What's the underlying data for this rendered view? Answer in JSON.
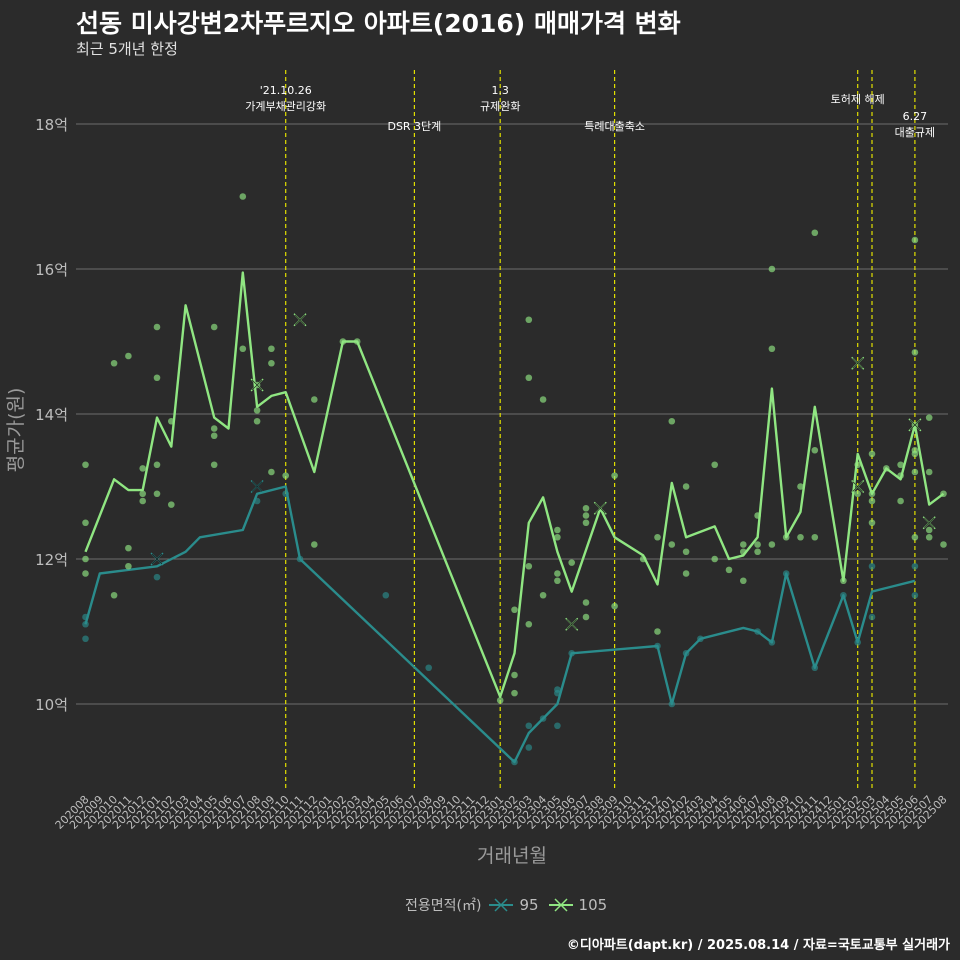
{
  "title": "선동 미사강변2차푸르지오 아파트(2016) 매매가격 변화",
  "subtitle": "최근 5개년 한정",
  "caption": "©디아파트(dapt.kr) / 2025.08.14 / 자료=국토교통부 실거래가",
  "colors": {
    "background": "#2b2b2b",
    "grid": "#6e6e6e",
    "series_95": "#2a8c8c",
    "series_105": "#90e682",
    "event_line": "#e2e000",
    "axis_text": "#bdbdbd"
  },
  "chart_data": {
    "type": "line",
    "xlabel": "거래년월",
    "ylabel": "평균가(원)",
    "ylim": [
      8.8,
      18.8
    ],
    "yticks": [
      {
        "value": 10,
        "label": "10억"
      },
      {
        "value": 12,
        "label": "12억"
      },
      {
        "value": 14,
        "label": "14억"
      },
      {
        "value": 16,
        "label": "16억"
      },
      {
        "value": 18,
        "label": "18억"
      }
    ],
    "months": [
      "202008",
      "202009",
      "202010",
      "202011",
      "202012",
      "202101",
      "202102",
      "202103",
      "202104",
      "202105",
      "202106",
      "202107",
      "202108",
      "202109",
      "202110",
      "202111",
      "202112",
      "202201",
      "202202",
      "202203",
      "202204",
      "202205",
      "202206",
      "202207",
      "202208",
      "202209",
      "202210",
      "202211",
      "202212",
      "202301",
      "202302",
      "202303",
      "202304",
      "202305",
      "202306",
      "202307",
      "202308",
      "202309",
      "202310",
      "202311",
      "202312",
      "202401",
      "202402",
      "202403",
      "202404",
      "202405",
      "202406",
      "202407",
      "202408",
      "202409",
      "202410",
      "202411",
      "202412",
      "202501",
      "202502",
      "202503",
      "202504",
      "202505",
      "202506",
      "202507",
      "202508"
    ],
    "legend_title": "전용면적(㎡)",
    "events": [
      {
        "month": "202110",
        "label_lines": [
          "'21.10.26",
          "가계부채관리강화"
        ],
        "row": 0
      },
      {
        "month": "202207",
        "label_lines": [
          "DSR 3단계"
        ],
        "row": 2
      },
      {
        "month": "202301",
        "label_lines": [
          "1.3",
          "규제완화"
        ],
        "row": 0
      },
      {
        "month": "202309",
        "label_lines": [
          "특례대출축소"
        ],
        "row": 2
      },
      {
        "month": "202502",
        "label_lines": [
          "토허제 해제"
        ],
        "row": 1
      },
      {
        "month": "202503",
        "label_lines": [],
        "row": 0
      },
      {
        "month": "202506",
        "label_lines": [
          "6.27",
          "대출규제"
        ],
        "row": 3
      }
    ],
    "series": [
      {
        "name": "95",
        "line": [
          [
            "202008",
            11.1
          ],
          [
            "202009",
            11.8
          ],
          [
            "202101",
            11.9
          ],
          [
            "202103",
            12.1
          ],
          [
            "202104",
            12.3
          ],
          [
            "202107",
            12.4
          ],
          [
            "202108",
            12.9
          ],
          [
            "202110",
            13.0
          ],
          [
            "202111",
            12.0
          ],
          [
            "202302",
            9.2
          ],
          [
            "202303",
            9.6
          ],
          [
            "202304",
            9.8
          ],
          [
            "202305",
            10.0
          ],
          [
            "202306",
            10.7
          ],
          [
            "202312",
            10.8
          ],
          [
            "202401",
            10.0
          ],
          [
            "202402",
            10.7
          ],
          [
            "202403",
            10.9
          ],
          [
            "202406",
            11.05
          ],
          [
            "202407",
            11.0
          ],
          [
            "202408",
            10.85
          ],
          [
            "202409",
            11.8
          ],
          [
            "202411",
            10.5
          ],
          [
            "202501",
            11.5
          ],
          [
            "202502",
            10.85
          ],
          [
            "202503",
            11.55
          ],
          [
            "202506",
            11.7
          ]
        ],
        "points": [
          [
            "202008",
            11.2
          ],
          [
            "202008",
            11.1
          ],
          [
            "202008",
            10.9
          ],
          [
            "202101",
            11.75
          ],
          [
            "202108",
            12.8
          ],
          [
            "202110",
            12.9
          ],
          [
            "202111",
            12.0
          ],
          [
            "202205",
            11.5
          ],
          [
            "202208",
            10.5
          ],
          [
            "202302",
            9.2
          ],
          [
            "202303",
            9.4
          ],
          [
            "202303",
            9.7
          ],
          [
            "202304",
            9.8
          ],
          [
            "202305",
            10.2
          ],
          [
            "202305",
            10.15
          ],
          [
            "202305",
            9.7
          ],
          [
            "202306",
            10.7
          ],
          [
            "202312",
            10.8
          ],
          [
            "202401",
            10.0
          ],
          [
            "202402",
            10.7
          ],
          [
            "202403",
            10.9
          ],
          [
            "202407",
            11.0
          ],
          [
            "202408",
            10.85
          ],
          [
            "202409",
            11.8
          ],
          [
            "202411",
            10.5
          ],
          [
            "202501",
            11.5
          ],
          [
            "202502",
            10.85
          ],
          [
            "202503",
            11.9
          ],
          [
            "202503",
            11.2
          ],
          [
            "202506",
            11.5
          ],
          [
            "202506",
            11.9
          ]
        ],
        "crosses": [
          [
            "202101",
            12.0
          ],
          [
            "202108",
            13.0
          ]
        ]
      },
      {
        "name": "105",
        "line": [
          [
            "202008",
            12.1
          ],
          [
            "202010",
            13.1
          ],
          [
            "202011",
            12.95
          ],
          [
            "202012",
            12.95
          ],
          [
            "202101",
            13.95
          ],
          [
            "202102",
            13.55
          ],
          [
            "202103",
            15.5
          ],
          [
            "202105",
            13.95
          ],
          [
            "202106",
            13.8
          ],
          [
            "202107",
            15.95
          ],
          [
            "202108",
            14.1
          ],
          [
            "202109",
            14.25
          ],
          [
            "202110",
            14.3
          ],
          [
            "202112",
            13.2
          ],
          [
            "202202",
            15.0
          ],
          [
            "202203",
            15.0
          ],
          [
            "202301",
            10.1
          ],
          [
            "202302",
            10.7
          ],
          [
            "202303",
            12.5
          ],
          [
            "202304",
            12.85
          ],
          [
            "202305",
            12.1
          ],
          [
            "202306",
            11.55
          ],
          [
            "202308",
            12.7
          ],
          [
            "202309",
            12.3
          ],
          [
            "202311",
            12.05
          ],
          [
            "202312",
            11.65
          ],
          [
            "202401",
            13.05
          ],
          [
            "202402",
            12.3
          ],
          [
            "202404",
            12.45
          ],
          [
            "202405",
            12.0
          ],
          [
            "202406",
            12.05
          ],
          [
            "202407",
            12.3
          ],
          [
            "202408",
            14.35
          ],
          [
            "202409",
            12.3
          ],
          [
            "202410",
            12.65
          ],
          [
            "202411",
            14.1
          ],
          [
            "202501",
            11.7
          ],
          [
            "202502",
            13.45
          ],
          [
            "202503",
            12.9
          ],
          [
            "202504",
            13.25
          ],
          [
            "202505",
            13.1
          ],
          [
            "202506",
            13.85
          ],
          [
            "202507",
            12.75
          ],
          [
            "202508",
            12.9
          ]
        ],
        "points": [
          [
            "202008",
            13.3
          ],
          [
            "202008",
            12.5
          ],
          [
            "202008",
            12.0
          ],
          [
            "202008",
            11.8
          ],
          [
            "202010",
            11.5
          ],
          [
            "202010",
            14.7
          ],
          [
            "202011",
            14.8
          ],
          [
            "202011",
            12.15
          ],
          [
            "202011",
            11.9
          ],
          [
            "202012",
            13.25
          ],
          [
            "202012",
            12.9
          ],
          [
            "202012",
            12.8
          ],
          [
            "202101",
            15.2
          ],
          [
            "202101",
            14.5
          ],
          [
            "202101",
            13.3
          ],
          [
            "202101",
            12.9
          ],
          [
            "202102",
            13.9
          ],
          [
            "202102",
            12.75
          ],
          [
            "202105",
            15.2
          ],
          [
            "202105",
            13.8
          ],
          [
            "202105",
            13.7
          ],
          [
            "202105",
            13.3
          ],
          [
            "202107",
            17.0
          ],
          [
            "202107",
            14.9
          ],
          [
            "202108",
            14.4
          ],
          [
            "202108",
            14.05
          ],
          [
            "202108",
            13.9
          ],
          [
            "202109",
            14.9
          ],
          [
            "202109",
            14.7
          ],
          [
            "202109",
            13.2
          ],
          [
            "202110",
            13.15
          ],
          [
            "202112",
            14.2
          ],
          [
            "202112",
            12.2
          ],
          [
            "202202",
            15.0
          ],
          [
            "202203",
            15.0
          ],
          [
            "202301",
            10.05
          ],
          [
            "202302",
            11.3
          ],
          [
            "202302",
            10.4
          ],
          [
            "202302",
            10.15
          ],
          [
            "202303",
            15.3
          ],
          [
            "202303",
            14.5
          ],
          [
            "202303",
            11.9
          ],
          [
            "202303",
            11.1
          ],
          [
            "202304",
            14.2
          ],
          [
            "202304",
            11.5
          ],
          [
            "202305",
            12.4
          ],
          [
            "202305",
            12.3
          ],
          [
            "202305",
            11.8
          ],
          [
            "202305",
            11.7
          ],
          [
            "202306",
            11.95
          ],
          [
            "202307",
            12.7
          ],
          [
            "202307",
            12.6
          ],
          [
            "202307",
            12.5
          ],
          [
            "202307",
            11.4
          ],
          [
            "202307",
            11.2
          ],
          [
            "202309",
            13.15
          ],
          [
            "202309",
            11.35
          ],
          [
            "202311",
            12.0
          ],
          [
            "202312",
            12.3
          ],
          [
            "202312",
            11.0
          ],
          [
            "202401",
            13.9
          ],
          [
            "202401",
            12.2
          ],
          [
            "202402",
            13.0
          ],
          [
            "202402",
            12.1
          ],
          [
            "202402",
            11.8
          ],
          [
            "202404",
            13.3
          ],
          [
            "202404",
            12.0
          ],
          [
            "202405",
            11.85
          ],
          [
            "202406",
            12.2
          ],
          [
            "202406",
            12.1
          ],
          [
            "202406",
            11.7
          ],
          [
            "202407",
            12.6
          ],
          [
            "202407",
            12.2
          ],
          [
            "202407",
            12.1
          ],
          [
            "202408",
            16.0
          ],
          [
            "202408",
            14.9
          ],
          [
            "202408",
            12.2
          ],
          [
            "202409",
            12.3
          ],
          [
            "202410",
            13.0
          ],
          [
            "202410",
            12.3
          ],
          [
            "202411",
            16.5
          ],
          [
            "202411",
            13.5
          ],
          [
            "202411",
            12.3
          ],
          [
            "202501",
            11.7
          ],
          [
            "202502",
            13.3
          ],
          [
            "202502",
            12.9
          ],
          [
            "202503",
            13.45
          ],
          [
            "202503",
            12.9
          ],
          [
            "202503",
            12.8
          ],
          [
            "202503",
            12.5
          ],
          [
            "202504",
            13.25
          ],
          [
            "202505",
            13.3
          ],
          [
            "202505",
            13.15
          ],
          [
            "202505",
            12.8
          ],
          [
            "202506",
            16.4
          ],
          [
            "202506",
            14.85
          ],
          [
            "202506",
            13.85
          ],
          [
            "202506",
            13.5
          ],
          [
            "202506",
            13.45
          ],
          [
            "202506",
            13.2
          ],
          [
            "202506",
            12.3
          ],
          [
            "202507",
            13.95
          ],
          [
            "202507",
            13.2
          ],
          [
            "202507",
            12.4
          ],
          [
            "202507",
            12.3
          ],
          [
            "202508",
            12.9
          ],
          [
            "202508",
            12.2
          ]
        ],
        "crosses": [
          [
            "202108",
            14.4
          ],
          [
            "202111",
            15.3
          ],
          [
            "202306",
            11.1
          ],
          [
            "202308",
            12.7
          ],
          [
            "202502",
            14.7
          ],
          [
            "202502",
            13.0
          ],
          [
            "202506",
            13.85
          ],
          [
            "202507",
            12.5
          ]
        ]
      }
    ]
  }
}
